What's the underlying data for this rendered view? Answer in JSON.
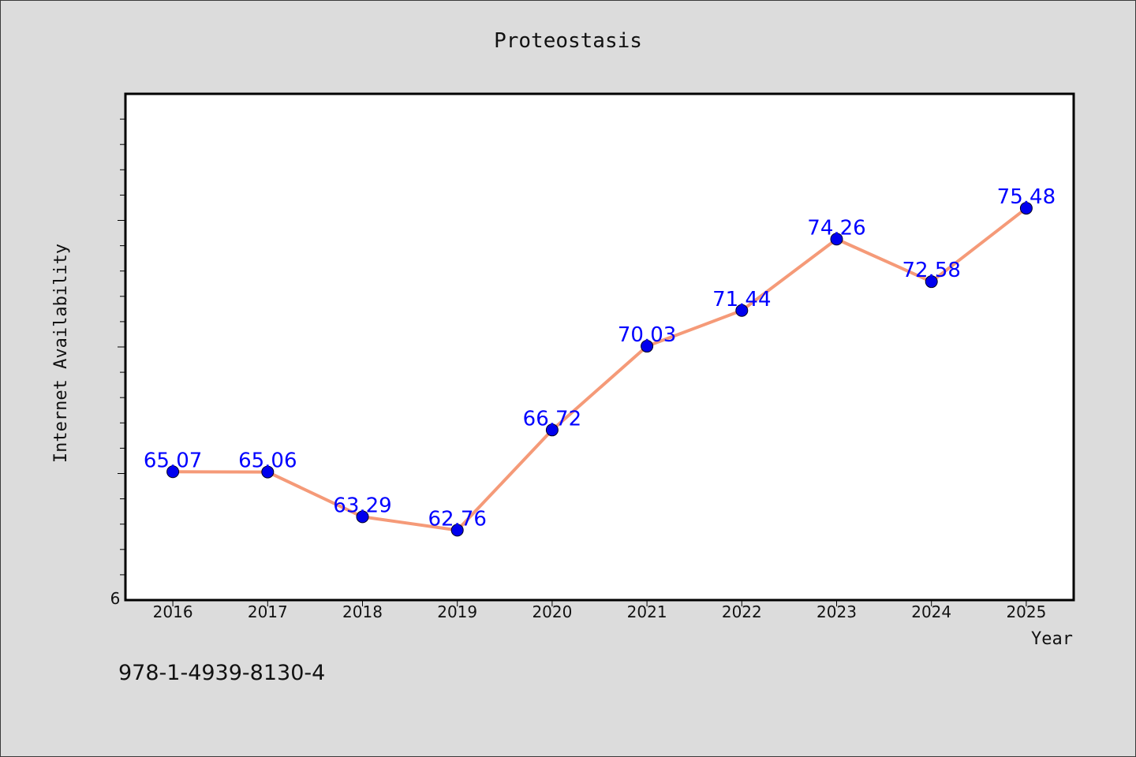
{
  "chart_data": {
    "type": "line",
    "title": "Proteostasis",
    "xlabel": "Year",
    "ylabel": "Internet Availability",
    "categories": [
      "2016",
      "2017",
      "2018",
      "2019",
      "2020",
      "2021",
      "2022",
      "2023",
      "2024",
      "2025"
    ],
    "values": [
      65.07,
      65.06,
      63.29,
      62.76,
      66.72,
      70.03,
      71.44,
      74.26,
      72.58,
      75.48
    ],
    "value_labels": [
      "65.07",
      "65.06",
      "63.29",
      "62.76",
      "66.72",
      "70.03",
      "71.44",
      "74.26",
      "72.58",
      "75.48"
    ],
    "ylim": [
      60,
      80
    ],
    "y_tick_label": "6",
    "grid": false,
    "line_color": "#f59a78",
    "marker_color": "#0000ee",
    "label_color": "#0000ff",
    "background": "#dcdcdc",
    "plot_background": "#ffffff"
  },
  "footer": {
    "isbn": "978-1-4939-8130-4"
  }
}
